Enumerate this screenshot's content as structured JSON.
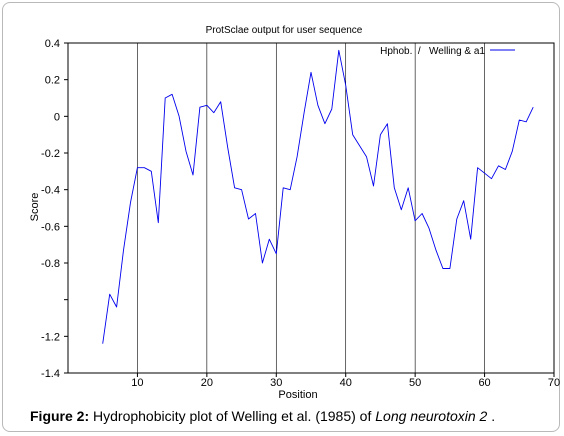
{
  "chart_data": {
    "type": "line",
    "title": "ProtSclae output for user sequence",
    "xlabel": "Position",
    "ylabel": "Score",
    "xlim": [
      0,
      70
    ],
    "ylim": [
      -1.4,
      0.4
    ],
    "x_ticks": [
      10,
      20,
      30,
      40,
      50,
      60,
      70
    ],
    "y_ticks": [
      0.4,
      0.2,
      0,
      -0.2,
      -0.4,
      -0.6,
      -0.8,
      -1.0,
      -1.2,
      -1.4
    ],
    "y_tick_labels": [
      "0.4",
      "0.2",
      "0",
      "-0.2",
      "-0.4",
      "-0.6",
      "-0.8",
      "",
      "-1.2",
      "-1.4"
    ],
    "grid": "vertical",
    "legend_position": "top-right",
    "series": [
      {
        "name": "Hphob.  /   Welling & a1",
        "color": "#0000ee",
        "x": [
          5,
          6,
          7,
          8,
          9,
          10,
          11,
          12,
          13,
          14,
          15,
          16,
          17,
          18,
          19,
          20,
          21,
          22,
          23,
          24,
          25,
          26,
          27,
          28,
          29,
          30,
          31,
          32,
          33,
          34,
          35,
          36,
          37,
          38,
          39,
          40,
          41,
          42,
          43,
          44,
          45,
          46,
          47,
          48,
          49,
          50,
          51,
          52,
          53,
          54,
          55,
          56,
          57,
          58,
          59,
          60,
          61,
          62,
          63,
          64,
          65,
          66,
          67
        ],
        "y": [
          -1.24,
          -0.97,
          -1.04,
          -0.73,
          -0.47,
          -0.28,
          -0.28,
          -0.3,
          -0.58,
          0.1,
          0.12,
          0.0,
          -0.19,
          -0.32,
          0.05,
          0.06,
          0.02,
          0.08,
          -0.17,
          -0.39,
          -0.4,
          -0.56,
          -0.53,
          -0.8,
          -0.67,
          -0.75,
          -0.39,
          -0.4,
          -0.22,
          0.02,
          0.24,
          0.06,
          -0.04,
          0.04,
          0.36,
          0.17,
          -0.1,
          -0.16,
          -0.22,
          -0.38,
          -0.1,
          -0.04,
          -0.39,
          -0.51,
          -0.39,
          -0.57,
          -0.53,
          -0.61,
          -0.73,
          -0.83,
          -0.83,
          -0.56,
          -0.46,
          -0.67,
          -0.28,
          -0.31,
          -0.34,
          -0.27,
          -0.29,
          -0.19,
          -0.02,
          -0.03,
          0.05
        ]
      }
    ]
  },
  "caption": {
    "figure_label": "Figure  2:",
    "text": " Hydrophobicity plot of Welling et al. (1985) of ",
    "species": "Long neurotoxin 2",
    "end": " ."
  }
}
